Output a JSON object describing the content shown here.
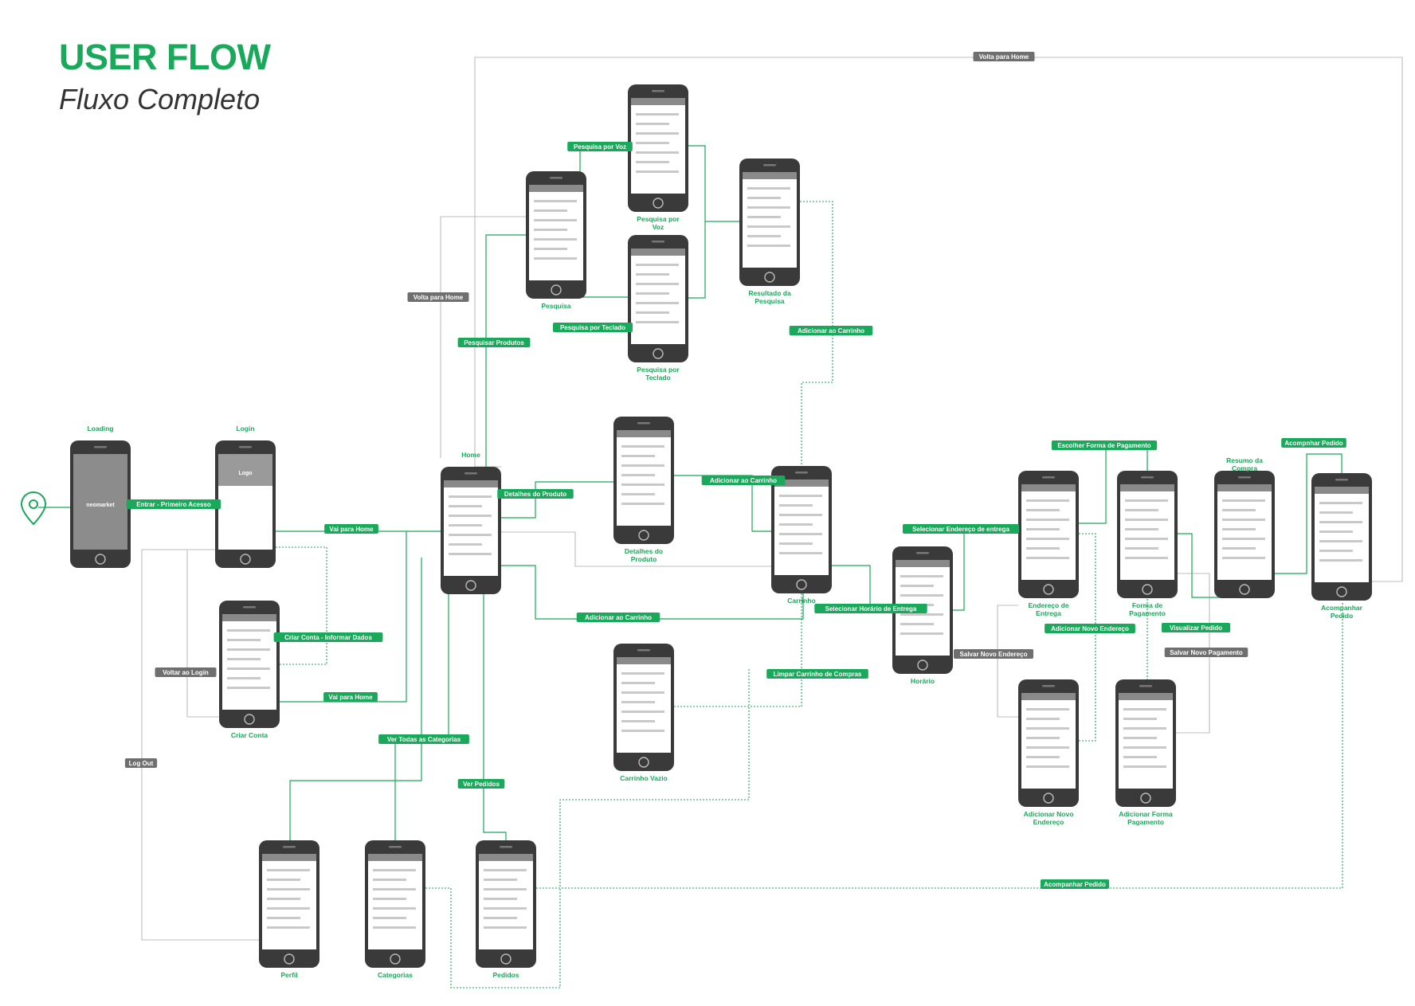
{
  "header": {
    "title": "USER FLOW",
    "subtitle": "Fluxo Completo"
  },
  "colors": {
    "accent": "#1aa85b",
    "gray_badge": "#6f6f6f",
    "phone": "#3a3a3a"
  },
  "icons": {
    "start": "location-pin-icon"
  },
  "screens": [
    {
      "id": "loading",
      "label": "Loading",
      "screen_text": "neomarket"
    },
    {
      "id": "login",
      "label": "Login",
      "screen_text": "Logo"
    },
    {
      "id": "criar-conta",
      "label": "Criar Conta",
      "screen_text": ""
    },
    {
      "id": "home",
      "label": "Home",
      "screen_text": ""
    },
    {
      "id": "pesquisa",
      "label": "Pesquisa",
      "screen_text": ""
    },
    {
      "id": "pesquisa-voz",
      "label": "Pesquisa por Voz",
      "screen_text": ""
    },
    {
      "id": "pesquisa-teclado",
      "label": "Pesquisa por Teclado",
      "screen_text": ""
    },
    {
      "id": "resultado",
      "label": "Resultado da Pesquisa",
      "screen_text": ""
    },
    {
      "id": "detalhes",
      "label": "Detalhes do Produto",
      "screen_text": ""
    },
    {
      "id": "carrinho",
      "label": "Carrinho",
      "screen_text": ""
    },
    {
      "id": "carrinho-vazio",
      "label": "Carrinho Vazio",
      "screen_text": ""
    },
    {
      "id": "horario",
      "label": "Horário",
      "screen_text": ""
    },
    {
      "id": "endereco",
      "label": "Endereço de Entrega",
      "screen_text": ""
    },
    {
      "id": "novo-endereco",
      "label": "Adicionar Novo Endereço",
      "screen_text": ""
    },
    {
      "id": "pagamento",
      "label": "Forma de Pagamento",
      "screen_text": ""
    },
    {
      "id": "novo-pagamento",
      "label": "Adicionar Forma Pagamento",
      "screen_text": ""
    },
    {
      "id": "resumo",
      "label": "Resumo da Compra",
      "screen_text": ""
    },
    {
      "id": "acompanhar",
      "label": "Acompanhar Pedido",
      "screen_text": ""
    },
    {
      "id": "perfil",
      "label": "Perfil",
      "screen_text": ""
    },
    {
      "id": "categorias",
      "label": "Categorias",
      "screen_text": ""
    },
    {
      "id": "pedidos",
      "label": "Pedidos",
      "screen_text": ""
    }
  ],
  "transitions": [
    {
      "id": "t1",
      "label": "Entrar - Primeiro Acesso",
      "style": "green"
    },
    {
      "id": "t2",
      "label": "Vai para Home",
      "style": "green"
    },
    {
      "id": "t3",
      "label": "Criar Conta - Informar Dados",
      "style": "green"
    },
    {
      "id": "t4",
      "label": "Vai para Home",
      "style": "green"
    },
    {
      "id": "t5",
      "label": "Voltar ao Login",
      "style": "gray"
    },
    {
      "id": "t6",
      "label": "Log Out",
      "style": "gray"
    },
    {
      "id": "t7",
      "label": "Volta para Home",
      "style": "gray"
    },
    {
      "id": "t8",
      "label": "Volta para Home",
      "style": "gray"
    },
    {
      "id": "t9",
      "label": "Pesquisar Produtos",
      "style": "green"
    },
    {
      "id": "t10",
      "label": "Pesquisa por Voz",
      "style": "green"
    },
    {
      "id": "t11",
      "label": "Pesquisa por Teclado",
      "style": "green"
    },
    {
      "id": "t12",
      "label": "Adicionar ao Carrinho",
      "style": "green"
    },
    {
      "id": "t13",
      "label": "Detalhes do Produto",
      "style": "green"
    },
    {
      "id": "t14",
      "label": "Adicionar ao Carrinho",
      "style": "green"
    },
    {
      "id": "t15",
      "label": "Adicionar ao Carrinho",
      "style": "green"
    },
    {
      "id": "t16",
      "label": "Limpar Carrinho de Compras",
      "style": "green"
    },
    {
      "id": "t17",
      "label": "Selecionar Horário de Entrega",
      "style": "green"
    },
    {
      "id": "t18",
      "label": "Selecionar Endereço de entrega",
      "style": "green"
    },
    {
      "id": "t19",
      "label": "Escolher Forma de Pagamento",
      "style": "green"
    },
    {
      "id": "t20",
      "label": "Adicionar Novo Endereço",
      "style": "green"
    },
    {
      "id": "t21",
      "label": "Salvar Novo Endereço",
      "style": "gray"
    },
    {
      "id": "t22",
      "label": "Visualizar Pedido",
      "style": "green"
    },
    {
      "id": "t23",
      "label": "Salvar Novo Pagamento",
      "style": "gray"
    },
    {
      "id": "t24",
      "label": "Acompnhar Pedido",
      "style": "green"
    },
    {
      "id": "t25",
      "label": "Ver Todas as Categorias",
      "style": "green"
    },
    {
      "id": "t26",
      "label": "Ver Pedidos",
      "style": "green"
    },
    {
      "id": "t27",
      "label": "Acompanhar Pedido",
      "style": "green"
    }
  ]
}
